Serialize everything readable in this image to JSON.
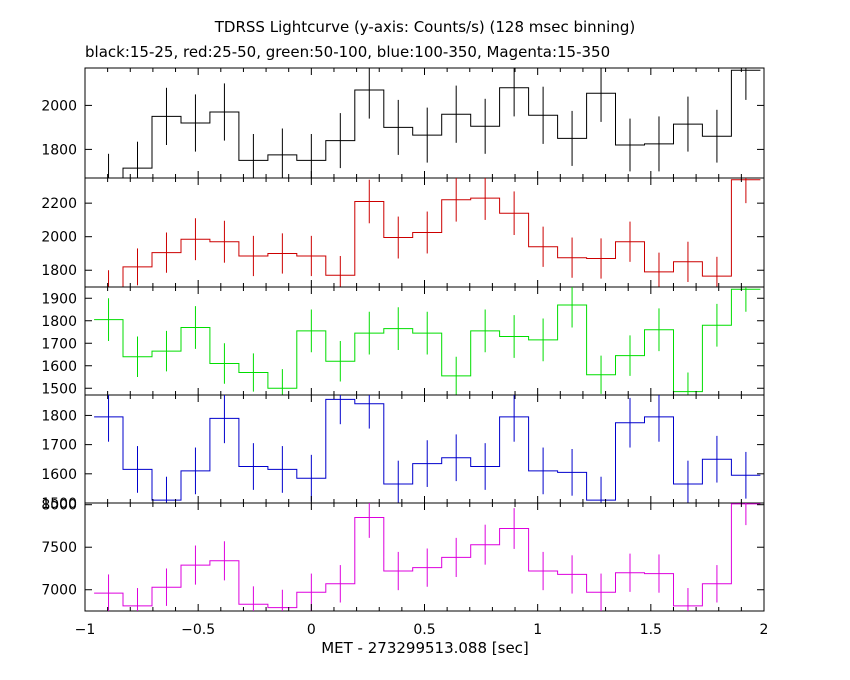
{
  "chart_data": {
    "type": "line",
    "title": "TDRSS Lightcurve (y-axis: Counts/s) (128 msec binning)",
    "subtitle": "black:15-25, red:25-50, green:50-100, blue:100-350, Magenta:15-350",
    "xlabel": "MET - 273299513.088 [sec]",
    "xlim": [
      -1,
      2
    ],
    "xticks": [
      -1,
      -0.5,
      0,
      0.5,
      1,
      1.5,
      2
    ],
    "xtick_labels": [
      "−1",
      "−0.5",
      "0",
      "0.5",
      "1",
      "1.5",
      "2"
    ],
    "bin_edges": [
      -0.96,
      -0.832,
      -0.704,
      -0.576,
      -0.448,
      -0.32,
      -0.192,
      -0.064,
      0.064,
      0.192,
      0.32,
      0.448,
      0.576,
      0.704,
      0.832,
      0.96,
      1.088,
      1.216,
      1.344,
      1.472,
      1.6,
      1.728,
      1.856,
      1.984
    ],
    "panels": [
      {
        "name": "15-25",
        "color": "#000000",
        "ylim": [
          1670,
          2170
        ],
        "yticks": [
          1800,
          2000
        ],
        "values": [
          1660,
          1715,
          1950,
          1920,
          1970,
          1750,
          1775,
          1750,
          1840,
          2070,
          1900,
          1865,
          1960,
          1905,
          2080,
          1955,
          1850,
          2055,
          1820,
          1825,
          1915,
          1860,
          2160
        ],
        "errors": [
          120,
          120,
          130,
          130,
          130,
          120,
          120,
          120,
          125,
          130,
          125,
          125,
          130,
          125,
          130,
          130,
          125,
          130,
          120,
          125,
          125,
          120,
          135
        ]
      },
      {
        "name": "25-50",
        "color": "#cc0000",
        "ylim": [
          1700,
          2350
        ],
        "yticks": [
          1800,
          2000,
          2200
        ],
        "values": [
          1690,
          1820,
          1905,
          1985,
          1970,
          1885,
          1900,
          1885,
          1770,
          2210,
          1995,
          2025,
          2220,
          2230,
          2140,
          1940,
          1875,
          1870,
          1970,
          1790,
          1850,
          1765,
          2340
        ],
        "errors": [
          110,
          110,
          120,
          125,
          125,
          120,
          120,
          120,
          115,
          130,
          125,
          125,
          130,
          130,
          130,
          120,
          120,
          120,
          120,
          115,
          120,
          115,
          140
        ]
      },
      {
        "name": "50-100",
        "color": "#00dd00",
        "ylim": [
          1470,
          1950
        ],
        "yticks": [
          1500,
          1600,
          1700,
          1800,
          1900
        ],
        "values": [
          1805,
          1640,
          1665,
          1770,
          1610,
          1570,
          1500,
          1755,
          1620,
          1745,
          1765,
          1745,
          1555,
          1755,
          1730,
          1715,
          1870,
          1560,
          1645,
          1760,
          1485,
          1780,
          1940
        ],
        "errors": [
          95,
          90,
          90,
          95,
          90,
          85,
          85,
          95,
          90,
          95,
          95,
          95,
          85,
          95,
          95,
          95,
          100,
          85,
          90,
          95,
          85,
          95,
          100
        ]
      },
      {
        "name": "100-350",
        "color": "#0000cc",
        "ylim": [
          1500,
          1870
        ],
        "yticks": [
          1500,
          1600,
          1700,
          1800
        ],
        "values": [
          1795,
          1615,
          1510,
          1610,
          1790,
          1625,
          1615,
          1585,
          1855,
          1840,
          1565,
          1635,
          1655,
          1625,
          1795,
          1610,
          1605,
          1510,
          1775,
          1795,
          1565,
          1650,
          1595
        ],
        "errors": [
          85,
          80,
          80,
          80,
          85,
          80,
          80,
          80,
          85,
          85,
          80,
          80,
          80,
          80,
          85,
          80,
          80,
          80,
          85,
          85,
          80,
          80,
          80
        ]
      },
      {
        "name": "15-350",
        "color": "#dd00dd",
        "ylim": [
          6750,
          8020
        ],
        "yticks": [
          7000,
          7500,
          8000
        ],
        "values": [
          6960,
          6810,
          7030,
          7290,
          7340,
          6830,
          6790,
          6970,
          7070,
          7850,
          7220,
          7260,
          7380,
          7530,
          7720,
          7220,
          7180,
          6970,
          7200,
          7190,
          6810,
          7070,
          8010
        ],
        "errors": [
          220,
          210,
          220,
          230,
          230,
          210,
          210,
          220,
          220,
          240,
          225,
          225,
          230,
          235,
          240,
          225,
          225,
          220,
          225,
          225,
          210,
          220,
          250
        ]
      }
    ]
  }
}
